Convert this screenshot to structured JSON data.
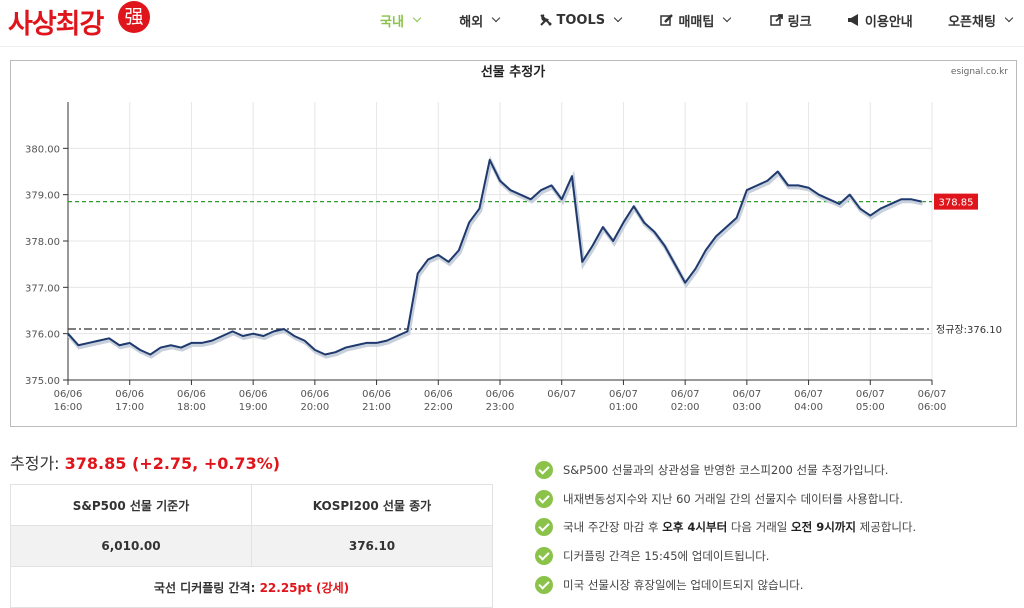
{
  "header": {
    "logo": "사상최강",
    "logo_mark": "强",
    "nav": [
      {
        "label": "국내",
        "dropdown": true,
        "active": true
      },
      {
        "label": "해외",
        "dropdown": true
      },
      {
        "label": "TOOLS",
        "dropdown": true,
        "icon": "wrench"
      },
      {
        "label": "매매팁",
        "dropdown": true,
        "icon": "edit"
      },
      {
        "label": "링크",
        "icon": "link"
      },
      {
        "label": "이용안내",
        "icon": "bullhorn"
      },
      {
        "label": "오픈채팅",
        "dropdown": true
      }
    ]
  },
  "chart_data": {
    "type": "line",
    "title": "선물 추정가",
    "source": "esignal.co.kr",
    "x": [
      "06/06 16:00",
      "06/06 16:10",
      "06/06 16:20",
      "06/06 16:30",
      "06/06 16:40",
      "06/06 16:50",
      "06/06 17:00",
      "06/06 17:10",
      "06/06 17:20",
      "06/06 17:30",
      "06/06 17:40",
      "06/06 17:50",
      "06/06 18:00",
      "06/06 18:10",
      "06/06 18:20",
      "06/06 18:30",
      "06/06 18:40",
      "06/06 18:50",
      "06/06 19:00",
      "06/06 19:10",
      "06/06 19:20",
      "06/06 19:30",
      "06/06 19:40",
      "06/06 19:50",
      "06/06 20:00",
      "06/06 20:10",
      "06/06 20:20",
      "06/06 20:30",
      "06/06 20:40",
      "06/06 20:50",
      "06/06 21:00",
      "06/06 21:10",
      "06/06 21:20",
      "06/06 21:30",
      "06/06 21:40",
      "06/06 21:50",
      "06/06 22:00",
      "06/06 22:10",
      "06/06 22:20",
      "06/06 22:30",
      "06/06 22:40",
      "06/06 22:50",
      "06/06 23:00",
      "06/06 23:10",
      "06/06 23:20",
      "06/06 23:30",
      "06/06 23:40",
      "06/06 23:50",
      "06/07 00:00",
      "06/07 00:10",
      "06/07 00:20",
      "06/07 00:30",
      "06/07 00:40",
      "06/07 00:50",
      "06/07 01:00",
      "06/07 01:10",
      "06/07 01:20",
      "06/07 01:30",
      "06/07 01:40",
      "06/07 01:50",
      "06/07 02:00",
      "06/07 02:10",
      "06/07 02:20",
      "06/07 02:30",
      "06/07 02:40",
      "06/07 02:50",
      "06/07 03:00",
      "06/07 03:10",
      "06/07 03:20",
      "06/07 03:30",
      "06/07 03:40",
      "06/07 03:50",
      "06/07 04:00",
      "06/07 04:10",
      "06/07 04:20",
      "06/07 04:30",
      "06/07 04:40",
      "06/07 04:50",
      "06/07 05:00",
      "06/07 05:10",
      "06/07 05:20",
      "06/07 05:30",
      "06/07 05:40",
      "06/07 05:50"
    ],
    "series": [
      {
        "color": "#1f3a6e",
        "values": [
          376.0,
          375.75,
          375.8,
          375.85,
          375.9,
          375.75,
          375.8,
          375.65,
          375.55,
          375.7,
          375.75,
          375.7,
          375.8,
          375.8,
          375.85,
          375.95,
          376.05,
          375.95,
          376.0,
          375.95,
          376.05,
          376.1,
          375.95,
          375.85,
          375.65,
          375.55,
          375.6,
          375.7,
          375.75,
          375.8,
          375.8,
          375.85,
          375.95,
          376.05,
          377.3,
          377.6,
          377.7,
          377.55,
          377.8,
          378.4,
          378.7,
          379.75,
          379.3,
          379.1,
          379.0,
          378.9,
          379.1,
          379.2,
          378.9,
          379.4,
          377.55,
          377.9,
          378.3,
          378.0,
          378.4,
          378.75,
          378.4,
          378.2,
          377.9,
          377.5,
          377.1,
          377.4,
          377.8,
          378.1,
          378.3,
          378.5,
          379.1,
          379.2,
          379.3,
          379.5,
          379.2,
          379.2,
          379.15,
          379.0,
          378.9,
          378.8,
          379.0,
          378.7,
          378.55,
          378.7,
          378.8,
          378.9,
          378.9,
          378.85
        ]
      }
    ],
    "xlim": [
      "06/06 16:00",
      "06/07 06:00"
    ],
    "xticks": [
      "06/06 16:00",
      "06/06 17:00",
      "06/06 18:00",
      "06/06 19:00",
      "06/06 20:00",
      "06/06 21:00",
      "06/06 22:00",
      "06/06 23:00",
      {
        "value": "06/07 00:00",
        "label": "06/07"
      },
      "06/07 01:00",
      "06/07 02:00",
      "06/07 03:00",
      "06/07 04:00",
      "06/07 05:00",
      "06/07 06:00"
    ],
    "ylim": [
      375,
      381
    ],
    "yticks": [
      {
        "value": 375,
        "label": "375.00"
      },
      {
        "value": 376,
        "label": "376.00"
      },
      {
        "value": 377,
        "label": "377.00"
      },
      {
        "value": 378,
        "label": "378.00"
      },
      {
        "value": 379,
        "label": "379.00"
      },
      {
        "value": 380,
        "label": "380.00"
      }
    ],
    "grid": true,
    "reference_lines": [
      {
        "value": 378.85,
        "label": "378.85",
        "color": "#2e9e2e",
        "style": "dashed"
      },
      {
        "value": 376.1,
        "label": "정규장:376.10",
        "color": "#333333",
        "style": "dashdot"
      }
    ]
  },
  "summary": {
    "label": "추정가:",
    "value": "378.85 (+2.75, +0.73%)"
  },
  "table": {
    "headers": [
      "S&P500 선물 기준가",
      "KOSPI200 선물 종가"
    ],
    "row": [
      "6,010.00",
      "376.10"
    ],
    "footer_label": "국선 디커플링 간격:",
    "footer_value": "22.25pt (강세)"
  },
  "notes": [
    [
      {
        "text": "S&P500 선물과의 상관성을 반영한 코스피200 선물 추정가입니다."
      }
    ],
    [
      {
        "text": "내재변동성지수와 지난 60 거래일 간의 선물지수 데이터를 사용합니다."
      }
    ],
    [
      {
        "text": "국내 주간장 마감 후 "
      },
      {
        "text": "오후 4시부터",
        "bold": true
      },
      {
        "text": " 다음 거래일 "
      },
      {
        "text": "오전 9시까지",
        "bold": true
      },
      {
        "text": " 제공합니다."
      }
    ],
    [
      {
        "text": "디커플링 간격은 15:45에 업데이트됩니다."
      }
    ],
    [
      {
        "text": "미국 선물시장 휴장일에는 업데이트되지 않습니다."
      }
    ]
  ]
}
